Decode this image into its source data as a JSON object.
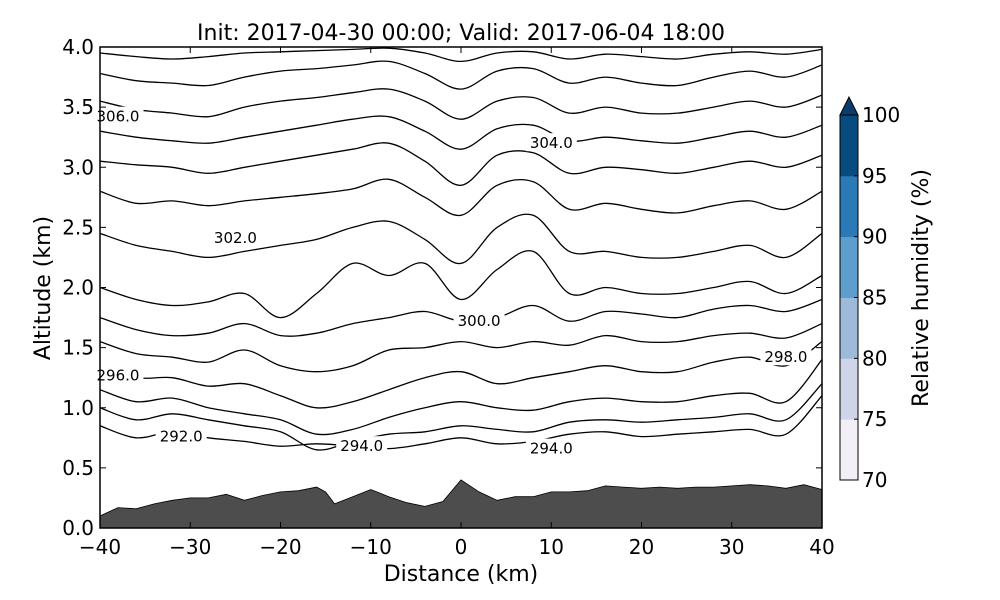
{
  "chart_data": {
    "type": "contour",
    "title": "Init: 2017-04-30 00:00; Valid: 2017-06-04 18:00",
    "xlabel": "Distance (km)",
    "ylabel": "Altitude (km)",
    "xlim": [
      -40,
      40
    ],
    "ylim": [
      0.0,
      4.0
    ],
    "x_ticks": [
      -40,
      -30,
      -20,
      -10,
      0,
      10,
      20,
      30,
      40
    ],
    "x_tick_labels": [
      "−40",
      "−30",
      "−20",
      "−10",
      "0",
      "10",
      "20",
      "30",
      "40"
    ],
    "y_ticks": [
      0.0,
      0.5,
      1.0,
      1.5,
      2.0,
      2.5,
      3.0,
      3.5,
      4.0
    ],
    "y_tick_labels": [
      "0.0",
      "0.5",
      "1.0",
      "1.5",
      "2.0",
      "2.5",
      "3.0",
      "3.5",
      "4.0"
    ],
    "terrain_color": "#4d4d4d",
    "terrain": {
      "x": [
        -40,
        -38,
        -36,
        -34,
        -32,
        -30,
        -28,
        -26,
        -24,
        -22,
        -20,
        -18,
        -16,
        -15,
        -14,
        -12,
        -10,
        -8,
        -6,
        -4,
        -2,
        0,
        2,
        4,
        6,
        8,
        10,
        12,
        14,
        16,
        18,
        20,
        22,
        24,
        26,
        28,
        30,
        32,
        34,
        36,
        38,
        40
      ],
      "y": [
        0.1,
        0.17,
        0.16,
        0.2,
        0.23,
        0.25,
        0.25,
        0.28,
        0.23,
        0.27,
        0.3,
        0.31,
        0.34,
        0.3,
        0.2,
        0.26,
        0.32,
        0.26,
        0.21,
        0.18,
        0.22,
        0.4,
        0.3,
        0.23,
        0.26,
        0.26,
        0.3,
        0.3,
        0.31,
        0.35,
        0.34,
        0.33,
        0.34,
        0.33,
        0.34,
        0.34,
        0.35,
        0.36,
        0.35,
        0.33,
        0.36,
        0.32
      ]
    },
    "colorbar": {
      "label": "Relative humidity (%)",
      "levels": [
        70,
        75,
        80,
        85,
        90,
        95,
        100
      ],
      "tick_labels": [
        "70",
        "75",
        "80",
        "85",
        "90",
        "95",
        "100"
      ],
      "colors": [
        "#f2eff6",
        "#cfd4e8",
        "#9dbada",
        "#5e9ecc",
        "#2a7ab8",
        "#084b7f"
      ],
      "extend_color": "#0c3c69",
      "extend": "max"
    },
    "contours": [
      {
        "level": 292.0,
        "label": "292.0",
        "x": [
          -40,
          -36,
          -32,
          -28,
          -24,
          -20,
          -16,
          -12,
          -8,
          -4,
          0,
          4,
          8,
          12,
          16,
          20,
          24,
          28,
          32,
          36,
          40
        ],
        "y": [
          0.85,
          0.75,
          0.8,
          0.75,
          0.72,
          0.68,
          0.7,
          0.68,
          0.66,
          0.7,
          0.75,
          0.7,
          0.72,
          0.78,
          0.8,
          0.76,
          0.78,
          0.8,
          0.82,
          0.78,
          1.1
        ]
      },
      {
        "level": 294.0,
        "label": "294.0",
        "x": [
          -40,
          -36,
          -32,
          -28,
          -24,
          -20,
          -16,
          -12,
          -8,
          -4,
          0,
          4,
          8,
          12,
          16,
          20,
          24,
          28,
          32,
          36,
          40
        ],
        "y": [
          1.0,
          0.9,
          0.95,
          0.9,
          0.85,
          0.8,
          0.65,
          0.72,
          0.78,
          0.8,
          0.85,
          0.82,
          0.8,
          0.88,
          0.9,
          0.88,
          0.9,
          0.92,
          0.95,
          0.9,
          1.2
        ]
      },
      {
        "level": 296.0,
        "label": "296.0",
        "x": [
          -40,
          -36,
          -32,
          -28,
          -24,
          -20,
          -16,
          -12,
          -8,
          -4,
          0,
          4,
          8,
          12,
          16,
          20,
          24,
          28,
          32,
          36,
          40
        ],
        "y": [
          1.15,
          1.05,
          1.08,
          1.0,
          0.95,
          0.9,
          0.78,
          0.82,
          0.92,
          1.0,
          1.05,
          1.0,
          0.98,
          1.05,
          1.08,
          1.05,
          1.05,
          1.1,
          1.12,
          1.05,
          1.4
        ]
      },
      {
        "level": 298.0,
        "label": "298.0",
        "x": [
          -40,
          -36,
          -32,
          -28,
          -24,
          -20,
          -16,
          -12,
          -8,
          -4,
          0,
          4,
          8,
          12,
          16,
          20,
          24,
          28,
          32,
          36,
          40
        ],
        "y": [
          1.35,
          1.25,
          1.25,
          1.18,
          1.2,
          1.1,
          1.0,
          1.05,
          1.15,
          1.25,
          1.3,
          1.2,
          1.25,
          1.3,
          1.35,
          1.3,
          1.3,
          1.38,
          1.42,
          1.35,
          1.55
        ]
      },
      {
        "level": 299.0,
        "label": "",
        "x": [
          -40,
          -36,
          -32,
          -28,
          -24,
          -20,
          -16,
          -12,
          -8,
          -4,
          0,
          4,
          8,
          12,
          16,
          20,
          24,
          28,
          32,
          36,
          40
        ],
        "y": [
          1.55,
          1.45,
          1.42,
          1.38,
          1.48,
          1.35,
          1.3,
          1.35,
          1.48,
          1.5,
          1.55,
          1.5,
          1.55,
          1.52,
          1.6,
          1.55,
          1.55,
          1.6,
          1.62,
          1.58,
          1.7
        ]
      },
      {
        "level": 300.0,
        "label": "300.0",
        "x": [
          -40,
          -36,
          -32,
          -28,
          -24,
          -20,
          -16,
          -12,
          -8,
          -4,
          0,
          4,
          8,
          12,
          16,
          20,
          24,
          28,
          32,
          36,
          40
        ],
        "y": [
          1.75,
          1.65,
          1.6,
          1.62,
          1.7,
          1.6,
          1.62,
          1.7,
          1.75,
          1.8,
          1.72,
          1.75,
          1.85,
          1.72,
          1.8,
          1.78,
          1.75,
          1.82,
          1.85,
          1.8,
          1.9
        ]
      },
      {
        "level": 301.0,
        "label": "",
        "x": [
          -40,
          -36,
          -32,
          -28,
          -24,
          -20,
          -16,
          -12,
          -8,
          -4,
          0,
          4,
          8,
          12,
          16,
          20,
          24,
          28,
          32,
          36,
          40
        ],
        "y": [
          2.0,
          1.9,
          1.85,
          1.88,
          1.95,
          1.75,
          1.95,
          2.2,
          2.1,
          2.2,
          1.9,
          2.15,
          2.3,
          1.95,
          2.0,
          1.95,
          1.95,
          2.0,
          2.05,
          1.95,
          2.1
        ]
      },
      {
        "level": 302.0,
        "label": "302.0",
        "x": [
          -40,
          -36,
          -32,
          -28,
          -24,
          -20,
          -16,
          -12,
          -8,
          -4,
          0,
          4,
          8,
          12,
          16,
          20,
          24,
          28,
          32,
          36,
          40
        ],
        "y": [
          2.45,
          2.35,
          2.3,
          2.25,
          2.3,
          2.35,
          2.4,
          2.5,
          2.55,
          2.4,
          2.2,
          2.5,
          2.6,
          2.3,
          2.3,
          2.25,
          2.25,
          2.3,
          2.35,
          2.25,
          2.45
        ]
      },
      {
        "level": 303.0,
        "label": "",
        "x": [
          -40,
          -36,
          -32,
          -28,
          -24,
          -20,
          -16,
          -12,
          -8,
          -4,
          0,
          4,
          8,
          12,
          16,
          20,
          24,
          28,
          32,
          36,
          40
        ],
        "y": [
          2.8,
          2.7,
          2.72,
          2.68,
          2.72,
          2.75,
          2.78,
          2.82,
          2.9,
          2.75,
          2.6,
          2.85,
          2.88,
          2.65,
          2.7,
          2.65,
          2.62,
          2.68,
          2.72,
          2.65,
          2.8
        ]
      },
      {
        "level": 304.0,
        "label": "304.0",
        "x": [
          -40,
          -36,
          -32,
          -28,
          -24,
          -20,
          -16,
          -12,
          -8,
          -4,
          0,
          4,
          8,
          12,
          16,
          20,
          24,
          28,
          32,
          36,
          40
        ],
        "y": [
          3.05,
          3.02,
          3.0,
          2.95,
          3.0,
          3.05,
          3.1,
          3.15,
          3.2,
          3.05,
          2.85,
          3.1,
          3.12,
          2.95,
          3.0,
          2.98,
          2.95,
          3.0,
          3.05,
          3.0,
          3.1
        ]
      },
      {
        "level": 305.0,
        "label": "",
        "x": [
          -40,
          -36,
          -32,
          -28,
          -24,
          -20,
          -16,
          -12,
          -8,
          -4,
          0,
          4,
          8,
          12,
          16,
          20,
          24,
          28,
          32,
          36,
          40
        ],
        "y": [
          3.3,
          3.25,
          3.22,
          3.2,
          3.25,
          3.3,
          3.35,
          3.4,
          3.42,
          3.3,
          3.15,
          3.32,
          3.35,
          3.22,
          3.25,
          3.22,
          3.2,
          3.25,
          3.3,
          3.25,
          3.35
        ]
      },
      {
        "level": 306.0,
        "label": "306.0",
        "x": [
          -40,
          -36,
          -32,
          -28,
          -24,
          -20,
          -16,
          -12,
          -8,
          -4,
          0,
          4,
          8,
          12,
          16,
          20,
          24,
          28,
          32,
          36,
          40
        ],
        "y": [
          3.55,
          3.48,
          3.45,
          3.42,
          3.5,
          3.55,
          3.58,
          3.62,
          3.65,
          3.55,
          3.4,
          3.55,
          3.58,
          3.45,
          3.5,
          3.45,
          3.45,
          3.5,
          3.55,
          3.5,
          3.6
        ]
      },
      {
        "level": 307.0,
        "label": "",
        "x": [
          -40,
          -36,
          -32,
          -28,
          -24,
          -20,
          -16,
          -12,
          -8,
          -4,
          0,
          4,
          8,
          12,
          16,
          20,
          24,
          28,
          32,
          36,
          40
        ],
        "y": [
          3.78,
          3.72,
          3.7,
          3.68,
          3.75,
          3.8,
          3.82,
          3.85,
          3.88,
          3.78,
          3.65,
          3.8,
          3.82,
          3.7,
          3.75,
          3.7,
          3.68,
          3.75,
          3.8,
          3.75,
          3.85
        ]
      },
      {
        "level": 308.0,
        "label": "",
        "x": [
          -40,
          -36,
          -32,
          -28,
          -24,
          -20,
          -16,
          -12,
          -8,
          -4,
          0,
          4,
          8,
          12,
          16,
          20,
          24,
          28,
          32,
          36,
          40
        ],
        "y": [
          3.95,
          3.92,
          3.9,
          3.92,
          3.95,
          3.96,
          3.97,
          3.98,
          3.99,
          3.95,
          3.88,
          3.95,
          3.96,
          3.9,
          3.94,
          3.92,
          3.9,
          3.94,
          3.96,
          3.94,
          3.98
        ]
      }
    ],
    "contour_labels": [
      {
        "text": "306.0",
        "x": -38,
        "y": 3.42
      },
      {
        "text": "304.0",
        "x": 10,
        "y": 3.2
      },
      {
        "text": "302.0",
        "x": -25,
        "y": 2.41
      },
      {
        "text": "300.0",
        "x": 2,
        "y": 1.72
      },
      {
        "text": "298.0",
        "x": 36,
        "y": 1.42
      },
      {
        "text": "296.0",
        "x": -38,
        "y": 1.27
      },
      {
        "text": "292.0",
        "x": -31,
        "y": 0.76
      },
      {
        "text": "294.0",
        "x": -11,
        "y": 0.68
      },
      {
        "text": "294.0",
        "x": 10,
        "y": 0.66
      }
    ]
  }
}
